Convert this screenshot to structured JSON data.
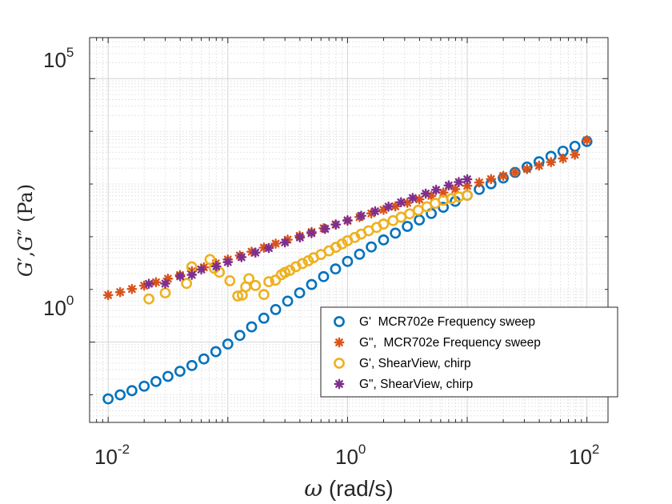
{
  "chart_data": {
    "type": "scatter",
    "xscale": "log",
    "yscale": "log",
    "xlim": [
      0.007,
      150
    ],
    "ylim": [
      0.03,
      600000
    ],
    "xticks": [
      {
        "base": "10",
        "exp": "-2"
      },
      {
        "base": "10",
        "exp": "0"
      },
      {
        "base": "10",
        "exp": "2"
      }
    ],
    "yticks": [
      {
        "base": "10",
        "exp": "0"
      },
      {
        "base": "10",
        "exp": "5"
      }
    ],
    "xlabel": {
      "symbol": "ω",
      "unit": " (rad/s)"
    },
    "ylabel": {
      "g1": "G",
      "prime1": "′",
      "sep": ",",
      "g2": "G",
      "prime2": "″",
      "unit": " (Pa)"
    },
    "grid": true,
    "legend_position": "bottom-right",
    "colors": {
      "blue": "#0072BD",
      "orange": "#D95319",
      "yellow": "#EDB120",
      "purple": "#7E2F8E"
    },
    "series": [
      {
        "name": "G'  MCR702e Frequency sweep",
        "marker": "circle",
        "color": "#0072BD",
        "x": [
          0.01,
          0.0126,
          0.0158,
          0.02,
          0.0251,
          0.0316,
          0.0398,
          0.0501,
          0.0631,
          0.0794,
          0.1,
          0.126,
          0.158,
          0.2,
          0.251,
          0.316,
          0.398,
          0.501,
          0.631,
          0.794,
          1,
          1.26,
          1.58,
          2,
          2.51,
          3.16,
          3.98,
          5.01,
          6.31,
          7.94,
          10,
          12.6,
          15.8,
          20,
          25.1,
          31.6,
          39.8,
          50.1,
          63.1,
          79.4,
          100
        ],
        "y": [
          0.084,
          0.1,
          0.12,
          0.146,
          0.179,
          0.224,
          0.28,
          0.36,
          0.48,
          0.66,
          0.92,
          1.34,
          1.95,
          2.85,
          4.15,
          6,
          8.6,
          12.4,
          17.5,
          24.5,
          34,
          46.5,
          64,
          87,
          117,
          157,
          208,
          276,
          362,
          470,
          610,
          790,
          1010,
          1300,
          1660,
          2100,
          2650,
          3350,
          4200,
          5200,
          6400
        ]
      },
      {
        "name": "G\",  MCR702e Frequency sweep",
        "marker": "asterisk",
        "color": "#D95319",
        "x": [
          0.01,
          0.0126,
          0.0158,
          0.02,
          0.0251,
          0.0316,
          0.0398,
          0.0501,
          0.0631,
          0.0794,
          0.1,
          0.126,
          0.158,
          0.2,
          0.251,
          0.316,
          0.398,
          0.501,
          0.631,
          0.794,
          1,
          1.26,
          1.58,
          2,
          2.51,
          3.16,
          3.98,
          5.01,
          6.31,
          7.94,
          10,
          12.6,
          15.8,
          20,
          25.1,
          31.6,
          39.8,
          50.1,
          63.1,
          79.4,
          100
        ],
        "y": [
          7.8,
          8.9,
          10.2,
          11.8,
          13.7,
          16,
          18.8,
          22.2,
          26.3,
          31.2,
          37,
          44,
          52,
          62,
          74,
          88,
          104,
          123,
          145,
          171,
          201,
          236,
          277,
          324,
          378,
          440,
          512,
          595,
          690,
          800,
          925,
          1070,
          1240,
          1430,
          1660,
          1920,
          2230,
          2600,
          3050,
          3600,
          6800
        ]
      },
      {
        "name": "G', ShearView, chirp",
        "marker": "circle",
        "color": "#EDB120",
        "x": [
          0.0219,
          0.03,
          0.0452,
          0.05,
          0.071,
          0.077,
          0.085,
          0.104,
          0.121,
          0.132,
          0.141,
          0.15,
          0.17,
          0.2,
          0.22,
          0.25,
          0.28,
          0.3,
          0.33,
          0.37,
          0.42,
          0.47,
          0.52,
          0.6,
          0.7,
          0.8,
          0.9,
          1.0,
          1.15,
          1.3,
          1.5,
          1.75,
          2,
          2.4,
          2.8,
          3.3,
          3.9,
          4.6,
          5.4,
          6.3,
          7.4,
          8.5,
          10
        ],
        "y": [
          6.6,
          8.6,
          13,
          26.8,
          37,
          25.2,
          21.2,
          14.6,
          7.5,
          7.8,
          11.2,
          16,
          11.9,
          8,
          14,
          15,
          19,
          21,
          23,
          27,
          31,
          35,
          40,
          46,
          54,
          63,
          73,
          84,
          97,
          112,
          130,
          150,
          174,
          202,
          234,
          272,
          318,
          370,
          430,
          490,
          530,
          570,
          610
        ]
      },
      {
        "name": "G\", ShearView, chirp",
        "marker": "asterisk",
        "color": "#7E2F8E",
        "x": [
          0.0219,
          0.03,
          0.04,
          0.05,
          0.06,
          0.08,
          0.1,
          0.13,
          0.17,
          0.22,
          0.3,
          0.4,
          0.5,
          0.65,
          0.8,
          1,
          1.3,
          1.7,
          2.2,
          2.8,
          3.5,
          4.5,
          5.5,
          7,
          8.5,
          10
        ],
        "y": [
          12.8,
          12.9,
          17.7,
          18.9,
          23.9,
          27.4,
          33,
          41,
          50,
          61,
          78,
          97,
          117,
          141,
          170,
          205,
          250,
          304,
          372,
          451,
          542,
          658,
          775,
          940,
          1090,
          1230
        ]
      }
    ]
  }
}
